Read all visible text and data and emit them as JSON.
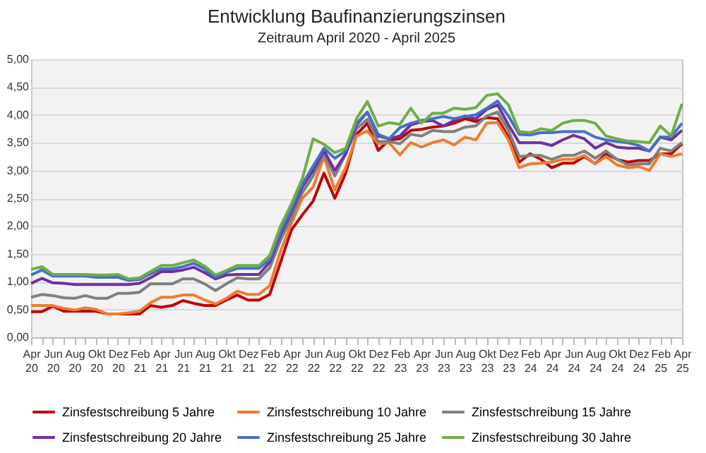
{
  "chart_data": {
    "type": "line",
    "title": "Entwicklung Baufinanzierungszinsen",
    "subtitle": "Zeitraum April 2020 - April 2025",
    "categories": [
      "Apr 20",
      null,
      "Jun 20",
      null,
      "Aug 20",
      null,
      "Okt 20",
      null,
      "Dez 20",
      null,
      "Feb 21",
      null,
      "Apr 21",
      null,
      "Jun 21",
      null,
      "Aug 21",
      null,
      "Okt 21",
      null,
      "Dez 21",
      null,
      "Feb 22",
      null,
      "Apr 22",
      null,
      "Jun 22",
      null,
      "Aug 22",
      null,
      "Okt 22",
      null,
      "Dez 22",
      null,
      "Feb 23",
      null,
      "Apr 23",
      null,
      "Jun 23",
      null,
      "Aug 23",
      null,
      "Okt 23",
      null,
      "Dez 23",
      null,
      "Feb 24",
      null,
      "Apr 24",
      null,
      "Jun 24",
      null,
      "Aug 24",
      null,
      "Okt 24",
      null,
      "Dez 24",
      null,
      "Feb 25",
      null,
      "Apr 25"
    ],
    "series": [
      {
        "name": "Zinsfestschreibung 5 Jahre",
        "color": "#c00000",
        "values": [
          0.46,
          0.46,
          0.56,
          0.47,
          0.47,
          0.47,
          0.47,
          0.42,
          0.42,
          0.42,
          0.42,
          0.57,
          0.54,
          0.57,
          0.66,
          0.61,
          0.57,
          0.57,
          0.67,
          0.76,
          0.67,
          0.67,
          0.77,
          1.35,
          1.93,
          2.2,
          2.45,
          2.95,
          2.5,
          2.95,
          3.65,
          3.85,
          3.36,
          3.55,
          3.57,
          3.72,
          3.74,
          3.78,
          3.8,
          3.85,
          3.93,
          3.88,
          3.95,
          3.93,
          3.6,
          3.15,
          3.3,
          3.2,
          3.05,
          3.13,
          3.13,
          3.25,
          3.12,
          3.3,
          3.2,
          3.15,
          3.18,
          3.18,
          3.3,
          3.3,
          3.48
        ]
      },
      {
        "name": "Zinsfestschreibung 10 Jahre",
        "color": "#ed7d31",
        "values": [
          0.57,
          0.57,
          0.57,
          0.52,
          0.49,
          0.53,
          0.5,
          0.42,
          0.42,
          0.44,
          0.47,
          0.62,
          0.72,
          0.72,
          0.76,
          0.76,
          0.67,
          0.6,
          0.7,
          0.83,
          0.77,
          0.77,
          0.93,
          1.55,
          2.05,
          2.5,
          2.7,
          3.25,
          2.65,
          3.05,
          3.62,
          3.71,
          3.48,
          3.5,
          3.28,
          3.5,
          3.42,
          3.5,
          3.55,
          3.46,
          3.6,
          3.55,
          3.85,
          3.86,
          3.55,
          3.05,
          3.12,
          3.13,
          3.15,
          3.2,
          3.2,
          3.27,
          3.12,
          3.25,
          3.1,
          3.05,
          3.07,
          3.0,
          3.3,
          3.25,
          3.3
        ]
      },
      {
        "name": "Zinsfestschreibung 15 Jahre",
        "color": "#7f7f7f",
        "values": [
          0.72,
          0.77,
          0.75,
          0.71,
          0.7,
          0.75,
          0.7,
          0.7,
          0.79,
          0.79,
          0.81,
          0.96,
          0.96,
          0.96,
          1.05,
          1.05,
          0.96,
          0.84,
          0.96,
          1.07,
          1.05,
          1.05,
          1.25,
          1.75,
          2.15,
          2.6,
          2.9,
          3.3,
          2.9,
          3.3,
          3.75,
          3.92,
          3.52,
          3.52,
          3.48,
          3.65,
          3.62,
          3.72,
          3.7,
          3.7,
          3.78,
          3.8,
          3.98,
          4.05,
          3.72,
          3.25,
          3.27,
          3.27,
          3.2,
          3.27,
          3.27,
          3.35,
          3.22,
          3.35,
          3.2,
          3.1,
          3.12,
          3.12,
          3.4,
          3.35,
          3.5
        ]
      },
      {
        "name": "Zinsfestschreibung 20 Jahre",
        "color": "#7030a0",
        "values": [
          0.97,
          1.06,
          0.98,
          0.97,
          0.95,
          0.95,
          0.95,
          0.95,
          0.95,
          0.95,
          0.97,
          1.07,
          1.18,
          1.18,
          1.21,
          1.26,
          1.16,
          1.05,
          1.12,
          1.13,
          1.13,
          1.13,
          1.35,
          1.85,
          2.25,
          2.7,
          3.0,
          3.36,
          3.0,
          3.3,
          3.82,
          4.05,
          3.62,
          3.57,
          3.62,
          3.82,
          3.88,
          3.9,
          3.8,
          3.9,
          3.98,
          3.93,
          4.1,
          4.18,
          3.82,
          3.5,
          3.5,
          3.5,
          3.45,
          3.55,
          3.63,
          3.57,
          3.4,
          3.5,
          3.42,
          3.4,
          3.4,
          3.35,
          3.6,
          3.55,
          3.72
        ]
      },
      {
        "name": "Zinsfestschreibung 25 Jahre",
        "color": "#4472c4",
        "values": [
          1.12,
          1.21,
          1.1,
          1.1,
          1.1,
          1.1,
          1.08,
          1.08,
          1.08,
          1.02,
          1.04,
          1.14,
          1.23,
          1.23,
          1.27,
          1.33,
          1.23,
          1.08,
          1.17,
          1.24,
          1.24,
          1.24,
          1.4,
          1.9,
          2.3,
          2.75,
          3.08,
          3.4,
          3.22,
          3.35,
          3.85,
          4.05,
          3.65,
          3.57,
          3.77,
          3.85,
          3.9,
          3.93,
          3.97,
          3.93,
          3.97,
          4.0,
          4.12,
          4.25,
          3.98,
          3.65,
          3.64,
          3.68,
          3.68,
          3.7,
          3.7,
          3.7,
          3.6,
          3.55,
          3.52,
          3.5,
          3.45,
          3.35,
          3.6,
          3.6,
          3.85
        ]
      },
      {
        "name": "Zinsfestschreibung 30 Jahre",
        "color": "#70ad47",
        "values": [
          1.22,
          1.27,
          1.13,
          1.13,
          1.13,
          1.13,
          1.12,
          1.12,
          1.13,
          1.05,
          1.07,
          1.18,
          1.29,
          1.29,
          1.34,
          1.39,
          1.28,
          1.12,
          1.2,
          1.29,
          1.29,
          1.29,
          1.47,
          2.0,
          2.4,
          2.85,
          3.57,
          3.47,
          3.32,
          3.4,
          3.93,
          4.24,
          3.8,
          3.86,
          3.83,
          4.12,
          3.85,
          4.03,
          4.03,
          4.12,
          4.1,
          4.13,
          4.35,
          4.38,
          4.18,
          3.7,
          3.68,
          3.75,
          3.72,
          3.85,
          3.9,
          3.9,
          3.85,
          3.62,
          3.57,
          3.53,
          3.52,
          3.5,
          3.8,
          3.62,
          4.2
        ]
      }
    ],
    "ylim": [
      0,
      5
    ],
    "yticks": [
      {
        "value": 0,
        "label": "0,00"
      },
      {
        "value": 0.5,
        "label": "0,50"
      },
      {
        "value": 1,
        "label": "1,00"
      },
      {
        "value": 1.5,
        "label": "1,50"
      },
      {
        "value": 2,
        "label": "2,00"
      },
      {
        "value": 2.5,
        "label": "2,50"
      },
      {
        "value": 3,
        "label": "3,00"
      },
      {
        "value": 3.5,
        "label": "3,50"
      },
      {
        "value": 4,
        "label": "4,00"
      },
      {
        "value": 4.5,
        "label": "4,50"
      },
      {
        "value": 5,
        "label": "5,00"
      }
    ],
    "grid": "y",
    "legend": "bottom"
  }
}
